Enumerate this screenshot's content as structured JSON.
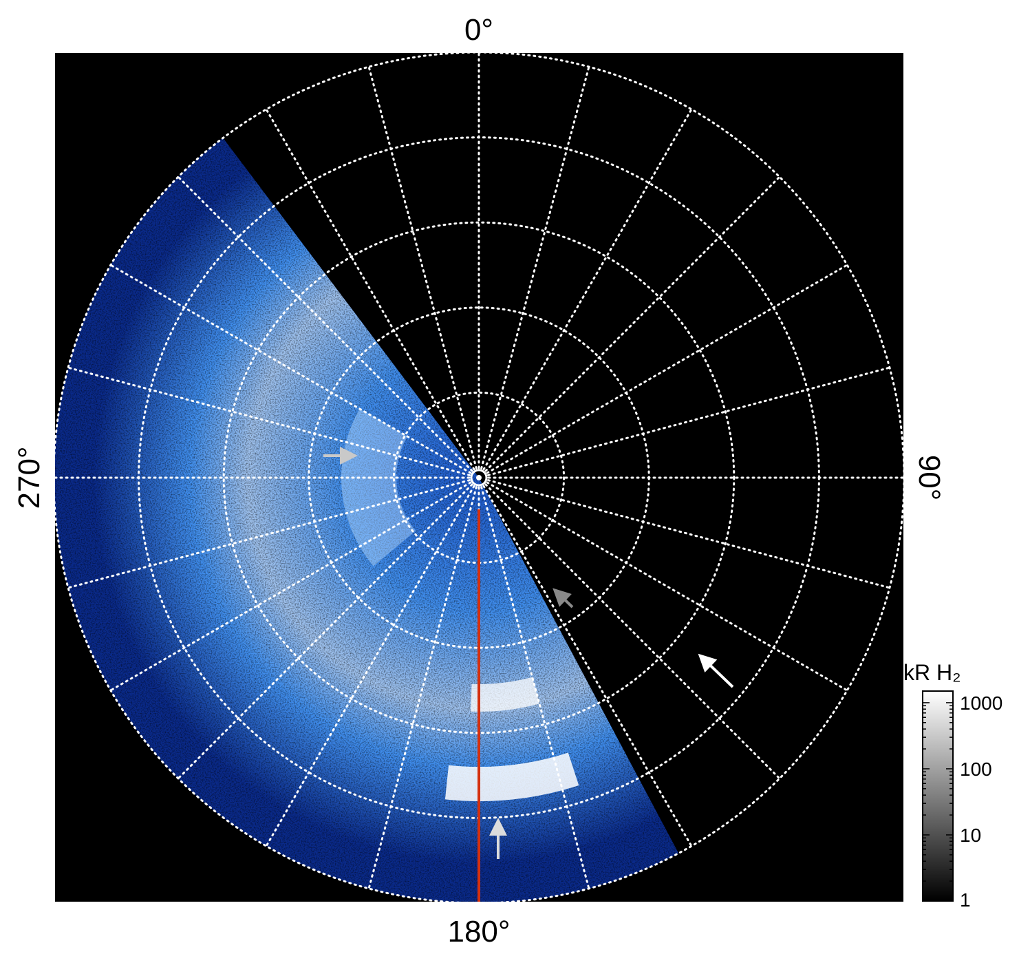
{
  "chart_data": {
    "type": "heatmap",
    "projection": "polar",
    "title": "",
    "angle_labels": [
      {
        "angle_deg": 0,
        "text": "0°"
      },
      {
        "angle_deg": 90,
        "text": "90°"
      },
      {
        "angle_deg": 180,
        "text": "180°"
      },
      {
        "angle_deg": 270,
        "text": "270°"
      }
    ],
    "meridian_spacing_deg": 15,
    "latitude_circle_count": 5,
    "grid": true,
    "grid_style": "dotted white",
    "highlight_meridian_deg": 180,
    "highlight_color": "#d4300f",
    "background_color": "#000000",
    "data_colormap": [
      "#000000",
      "#0a2a8a",
      "#1f5fd6",
      "#4aa0ff",
      "#b9dcff",
      "#ffffff"
    ],
    "colorbar": {
      "title": "kR H₂",
      "scale": "log",
      "range": [
        1,
        1500
      ],
      "ticks": [
        {
          "value": 1,
          "label": "1"
        },
        {
          "value": 10,
          "label": "10"
        },
        {
          "value": 100,
          "label": "100"
        },
        {
          "value": 1000,
          "label": "1000"
        }
      ],
      "colors": [
        "#000000",
        "#ffffff"
      ]
    },
    "arrows": [
      {
        "color": "#c9c9c9",
        "direction": "east"
      },
      {
        "color": "#8a8a8a",
        "direction": "northwest"
      },
      {
        "color": "#ffffff",
        "direction": "northwest"
      },
      {
        "color": "#dcdcdc",
        "direction": "north"
      }
    ]
  }
}
